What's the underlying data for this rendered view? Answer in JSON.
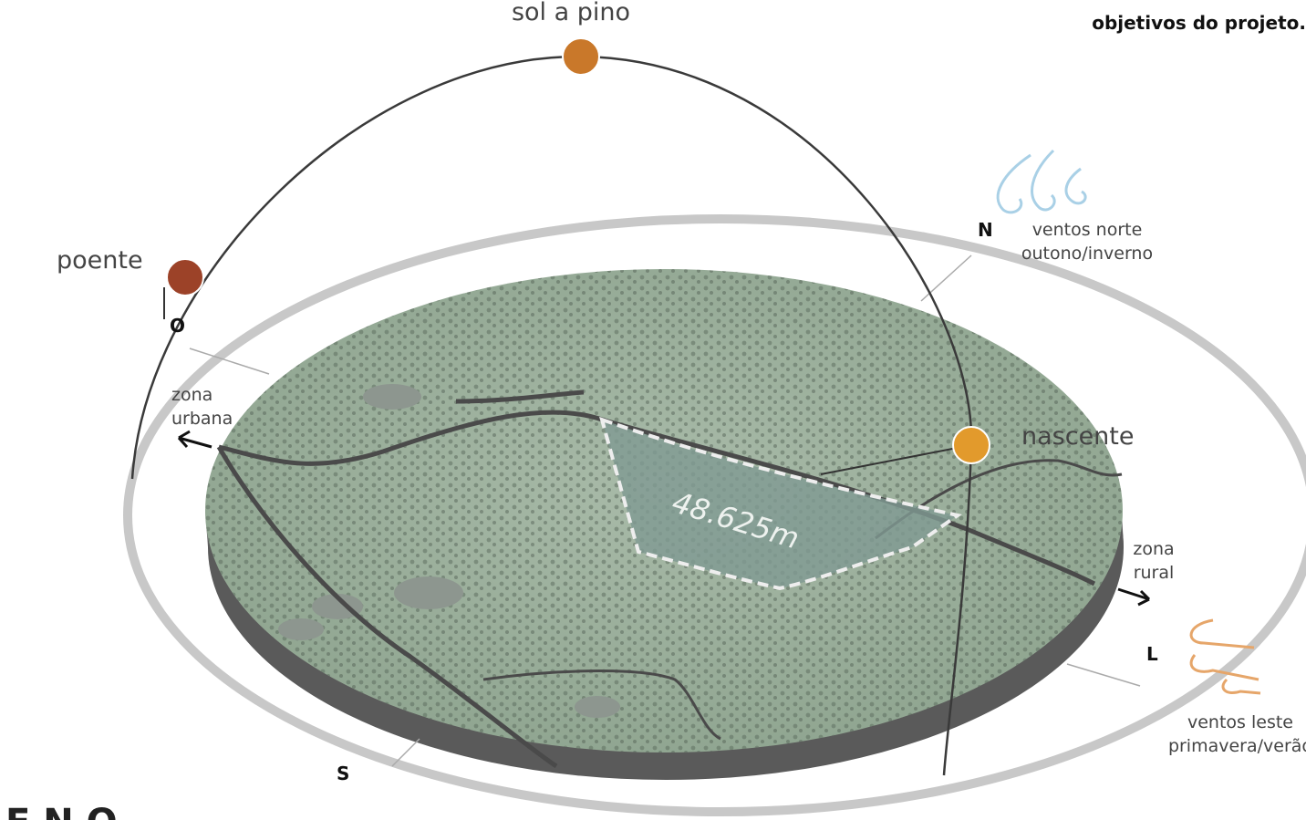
{
  "header": {
    "title": "objetivos do projeto."
  },
  "sun": {
    "zenith": "sol a pino",
    "sunset": "poente",
    "sunrise": "nascente"
  },
  "directions": {
    "west": "O",
    "north": "N",
    "east": "L",
    "south": "S"
  },
  "winds": {
    "north": {
      "line1": "ventos norte",
      "line2": "outono/inverno"
    },
    "east": {
      "line1": "ventos leste",
      "line2": "primavera/verão"
    }
  },
  "zones": {
    "urban": {
      "line1": "zona",
      "line2": "urbana"
    },
    "rural": {
      "line1": "zona",
      "line2": "rural"
    }
  },
  "site": {
    "area": "48.625m"
  },
  "footer": {
    "heading": "E N O"
  }
}
